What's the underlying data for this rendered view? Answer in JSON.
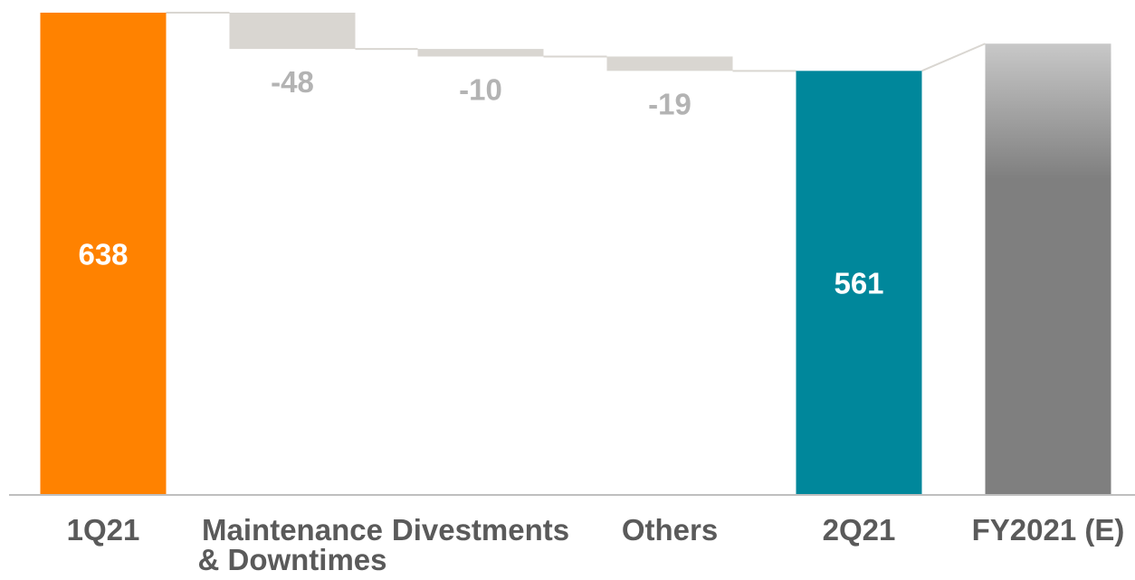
{
  "chart_data": {
    "type": "bar",
    "subtype": "waterfall",
    "title": "",
    "xlabel": "",
    "ylabel": "",
    "categories": [
      "1Q21",
      "Maintenance\n& Downtimes",
      "Divestments",
      "Others",
      "2Q21",
      "FY2021 (E)"
    ],
    "values": [
      638,
      -48,
      -10,
      -19,
      561,
      597
    ],
    "kinds": [
      "total",
      "delta",
      "delta",
      "delta",
      "total",
      "total"
    ],
    "data_labels": [
      "638",
      "-48",
      "-10",
      "-19",
      "561",
      ""
    ],
    "ylim": [
      0,
      638
    ],
    "grid": false,
    "legend": "none",
    "colors": {
      "start_bar": "#FF8200",
      "delta_bar": "#D9D6D1",
      "end_bar": "#00879B",
      "estimate_bar_top": "#C8C8C8",
      "estimate_bar_bottom": "#7F7F7F",
      "connector": "#D9D6D1",
      "axis": "#BFBFBF",
      "label_on_bar": "#FFFFFF",
      "label_delta": "#B3B3B3",
      "category_text": "#5A5A5A"
    }
  }
}
